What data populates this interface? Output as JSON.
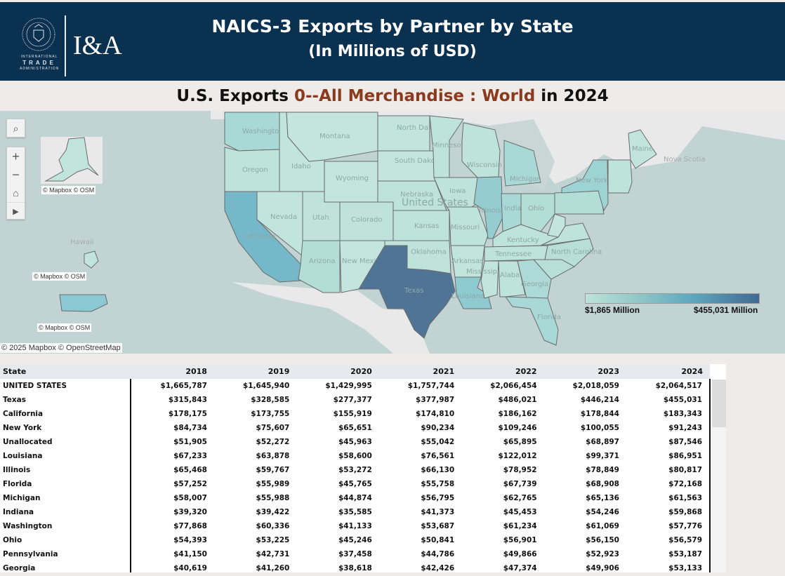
{
  "header": {
    "title": "NAICS-3 Exports by Partner by State",
    "subtitle": "(In Millions of USD)",
    "logo_text": "I&A",
    "agency": [
      "INTERNATIONAL",
      "TRADE",
      "ADMINISTRATION"
    ]
  },
  "view_title": {
    "prefix": "U.S. Exports",
    "product": "0--All Merchandise : World",
    "suffix": "in 2024",
    "highlight_color": "#8a3a1e"
  },
  "map": {
    "controls": {
      "search": "search-icon",
      "zoom_in": "+",
      "zoom_out": "−",
      "home": "home-icon",
      "expand": "play-icon"
    },
    "attributions": [
      "© Mapbox © OSM",
      "© Mapbox © OSM",
      "© Mapbox © OSM",
      "© 2025 Mapbox © OpenStreetMap"
    ],
    "labels": {
      "country": "United States",
      "hawaii": "Hawaii",
      "nova_scotia": "Nova Scotia",
      "states": [
        "Washington",
        "Oregon",
        "California",
        "Nevada",
        "Idaho",
        "Montana",
        "Wyoming",
        "Utah",
        "Colorado",
        "Arizona",
        "New Mexico",
        "North Dakota",
        "South Dakota",
        "Nebraska",
        "Kansas",
        "Oklahoma",
        "Texas",
        "Minnesota",
        "Iowa",
        "Missouri",
        "Arkansas",
        "Louisiana",
        "Wisconsin",
        "Illinois",
        "Michigan",
        "Indiana",
        "Ohio",
        "Kentucky",
        "Tennessee",
        "Mississippi",
        "Alabama",
        "Georgia",
        "Florida",
        "North Carolina",
        "New York",
        "Maine"
      ]
    },
    "legend": {
      "min": "$1,865 Million",
      "max": "$455,031 Million",
      "color_low": "#bde3da",
      "color_high": "#416a92"
    }
  },
  "table": {
    "columns": [
      "State",
      "2018",
      "2019",
      "2020",
      "2021",
      "2022",
      "2023",
      "2024"
    ],
    "rows": [
      [
        "UNITED STATES",
        "$1,665,787",
        "$1,645,940",
        "$1,429,995",
        "$1,757,744",
        "$2,066,454",
        "$2,018,059",
        "$2,064,517"
      ],
      [
        "Texas",
        "$315,843",
        "$328,585",
        "$277,377",
        "$377,987",
        "$486,021",
        "$446,214",
        "$455,031"
      ],
      [
        "California",
        "$178,175",
        "$173,755",
        "$155,919",
        "$174,810",
        "$186,162",
        "$178,844",
        "$183,343"
      ],
      [
        "New York",
        "$84,734",
        "$75,607",
        "$65,651",
        "$90,234",
        "$109,246",
        "$100,055",
        "$91,243"
      ],
      [
        "Unallocated",
        "$51,905",
        "$52,272",
        "$45,963",
        "$55,042",
        "$65,895",
        "$68,897",
        "$87,546"
      ],
      [
        "Louisiana",
        "$67,233",
        "$63,878",
        "$58,600",
        "$76,561",
        "$122,012",
        "$99,371",
        "$86,951"
      ],
      [
        "Illinois",
        "$65,468",
        "$59,767",
        "$53,272",
        "$66,130",
        "$78,952",
        "$78,849",
        "$80,817"
      ],
      [
        "Florida",
        "$57,252",
        "$55,989",
        "$45,765",
        "$55,758",
        "$67,739",
        "$68,908",
        "$72,168"
      ],
      [
        "Michigan",
        "$58,007",
        "$55,988",
        "$44,874",
        "$56,795",
        "$62,765",
        "$65,136",
        "$61,563"
      ],
      [
        "Indiana",
        "$39,320",
        "$39,422",
        "$35,585",
        "$41,373",
        "$45,453",
        "$54,246",
        "$59,868"
      ],
      [
        "Washington",
        "$77,868",
        "$60,336",
        "$41,133",
        "$53,687",
        "$61,234",
        "$61,069",
        "$57,776"
      ],
      [
        "Ohio",
        "$54,393",
        "$53,225",
        "$45,246",
        "$50,841",
        "$56,901",
        "$56,150",
        "$56,579"
      ],
      [
        "Pennsylvania",
        "$41,150",
        "$42,731",
        "$37,458",
        "$44,786",
        "$49,866",
        "$52,923",
        "$53,187"
      ],
      [
        "Georgia",
        "$40,619",
        "$41,260",
        "$38,618",
        "$42,426",
        "$47,374",
        "$49,906",
        "$53,133"
      ]
    ]
  }
}
